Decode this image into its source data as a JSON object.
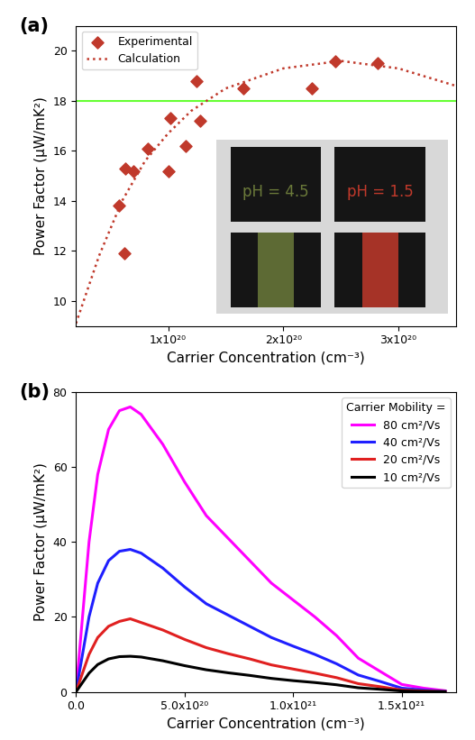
{
  "chart_data": [
    {
      "type": "scatter",
      "title": "(a)",
      "x_label": "Carrier Concentration (cm⁻³)",
      "y_label": "Power Factor (μW/mK²)",
      "xlim": [
        2e+19,
        3.5e+20
      ],
      "ylim": [
        9,
        21
      ],
      "xticks": [
        {
          "value": 1e+20,
          "label": "1x10²⁰"
        },
        {
          "value": 2e+20,
          "label": "2x10²⁰"
        },
        {
          "value": 3e+20,
          "label": "3x10²⁰"
        }
      ],
      "yticks": [
        10,
        12,
        14,
        16,
        18,
        20
      ],
      "legend": "upper left",
      "reference_line": {
        "y": 18,
        "color": "#66ff33"
      },
      "annotations": [
        {
          "text": "pH = 4.5",
          "color": "#6b7a3a"
        },
        {
          "text": "pH = 1.5",
          "color": "#c0392b"
        }
      ],
      "series": [
        {
          "name": "Experimental",
          "type": "scatter",
          "marker": "diamond",
          "color": "#c0392b",
          "x": [
            5.7e+19,
            6.2e+19,
            6.3e+19,
            7e+19,
            8.2e+19,
            1e+20,
            1.02e+20,
            1.15e+20,
            1.25e+20,
            1.28e+20,
            1.65e+20,
            2.25e+20,
            2.45e+20,
            2.82e+20
          ],
          "values": [
            13.8,
            11.9,
            15.3,
            15.2,
            16.1,
            15.2,
            17.3,
            16.2,
            18.8,
            17.2,
            18.5,
            18.5,
            19.6,
            19.5
          ]
        },
        {
          "name": "Calculation",
          "type": "line",
          "line_style": "dotted",
          "color": "#c0392b",
          "x": [
            2e+19,
            4e+19,
            6e+19,
            8e+19,
            1e+20,
            1.2e+20,
            1.5e+20,
            2e+20,
            2.5e+20,
            3e+20,
            3.5e+20
          ],
          "values": [
            9.1,
            11.8,
            14.0,
            15.6,
            16.7,
            17.6,
            18.5,
            19.3,
            19.6,
            19.3,
            18.6
          ]
        }
      ]
    },
    {
      "type": "line",
      "title": "(b)",
      "x_label": "Carrier Concentration (cm⁻³)",
      "y_label": "Power Factor (μW/mK²)",
      "xlim": [
        0,
        1.75e+21
      ],
      "ylim": [
        0,
        80
      ],
      "xticks": [
        {
          "value": 0,
          "label": "0.0"
        },
        {
          "value": 5e+20,
          "label": "5.0x10²⁰"
        },
        {
          "value": 1e+21,
          "label": "1.0x10²¹"
        },
        {
          "value": 1.5e+21,
          "label": "1.5x10²¹"
        }
      ],
      "yticks": [
        0,
        20,
        40,
        60,
        80
      ],
      "legend": "upper right",
      "legend_title": "Carrier Mobility =",
      "series": [
        {
          "name": "80 cm²/Vs",
          "type": "line",
          "line_style": "solid",
          "color": "#ff00ff",
          "x": [
            0,
            3e+19,
            6e+19,
            1e+20,
            1.5e+20,
            2e+20,
            2.5e+20,
            3e+20,
            3.5e+20,
            4e+20,
            5e+20,
            6e+20,
            7e+20,
            8e+20,
            9e+20,
            1e+21,
            1.1e+21,
            1.2e+21,
            1.3e+21,
            1.4e+21,
            1.5e+21,
            1.6e+21,
            1.7e+21
          ],
          "values": [
            0,
            20,
            40,
            58,
            70,
            75,
            76,
            74,
            70,
            66,
            56,
            47,
            41,
            35,
            29,
            24.5,
            20,
            15,
            9,
            5.5,
            2,
            1,
            0.3
          ]
        },
        {
          "name": "40 cm²/Vs",
          "type": "line",
          "line_style": "solid",
          "color": "#1f1fff",
          "x": [
            0,
            3e+19,
            6e+19,
            1e+20,
            1.5e+20,
            2e+20,
            2.5e+20,
            3e+20,
            3.5e+20,
            4e+20,
            5e+20,
            6e+20,
            7e+20,
            8e+20,
            9e+20,
            1e+21,
            1.1e+21,
            1.2e+21,
            1.3e+21,
            1.4e+21,
            1.5e+21,
            1.6e+21,
            1.7e+21
          ],
          "values": [
            0,
            10,
            20,
            29,
            35,
            37.5,
            38,
            37,
            35,
            33,
            28,
            23.5,
            20.5,
            17.5,
            14.5,
            12.2,
            10,
            7.5,
            4.5,
            2.8,
            1,
            0.5,
            0.15
          ]
        },
        {
          "name": "20 cm²/Vs",
          "type": "line",
          "line_style": "solid",
          "color": "#e02020",
          "x": [
            0,
            3e+19,
            6e+19,
            1e+20,
            1.5e+20,
            2e+20,
            2.5e+20,
            3e+20,
            3.5e+20,
            4e+20,
            5e+20,
            6e+20,
            7e+20,
            8e+20,
            9e+20,
            1e+21,
            1.1e+21,
            1.2e+21,
            1.3e+21,
            1.4e+21,
            1.5e+21,
            1.6e+21,
            1.7e+21
          ],
          "values": [
            0,
            5,
            10,
            14.5,
            17.5,
            18.8,
            19.5,
            18.5,
            17.5,
            16.5,
            14,
            11.8,
            10.2,
            8.8,
            7.2,
            6.1,
            5,
            3.8,
            2.2,
            1.4,
            0.5,
            0.25,
            0.1
          ]
        },
        {
          "name": "10 cm²/Vs",
          "type": "line",
          "line_style": "solid",
          "color": "#000000",
          "x": [
            0,
            3e+19,
            6e+19,
            1e+20,
            1.5e+20,
            2e+20,
            2.5e+20,
            3e+20,
            3.5e+20,
            4e+20,
            5e+20,
            6e+20,
            7e+20,
            8e+20,
            9e+20,
            1e+21,
            1.1e+21,
            1.2e+21,
            1.3e+21,
            1.4e+21,
            1.5e+21,
            1.6e+21,
            1.7e+21
          ],
          "values": [
            0,
            2.5,
            5,
            7.3,
            8.8,
            9.4,
            9.5,
            9.3,
            8.8,
            8.3,
            7,
            5.9,
            5.1,
            4.4,
            3.6,
            3,
            2.5,
            1.9,
            1.1,
            0.7,
            0.25,
            0.1,
            0.05
          ]
        }
      ]
    }
  ]
}
